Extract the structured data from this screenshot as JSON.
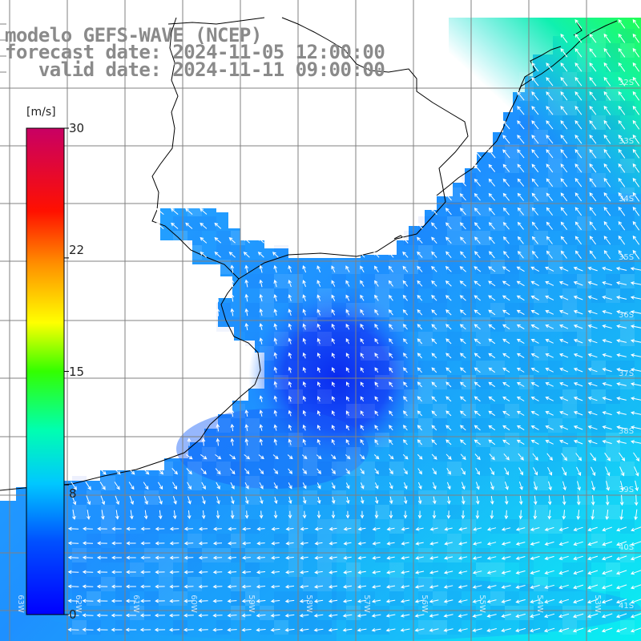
{
  "title": {
    "line1": "modelo GEFS-WAVE (NCEP)",
    "line2": "forecast date: 2024-11-05 12:00:00",
    "line3": "   valid date: 2024-11-11 09:00:00"
  },
  "colorbar": {
    "unit": "[m/s]",
    "ticks": [
      "30",
      "22",
      "15",
      "8",
      "0"
    ],
    "tick_values": [
      30,
      22,
      15,
      8,
      0
    ],
    "min": 0,
    "max": 30,
    "stops": [
      "#0000ff",
      "#00c8ff",
      "#00ffcc",
      "#33ff00",
      "#ffff00",
      "#ff8000",
      "#ff0000",
      "#c80064"
    ]
  },
  "grid": {
    "lat_labels": [
      "32S",
      "33S",
      "34S",
      "35S",
      "36S",
      "37S",
      "38S",
      "39S",
      "40S",
      "41S"
    ],
    "lon_labels": [
      "63W",
      "62W",
      "61W",
      "60W",
      "59W",
      "58W",
      "57W",
      "56W",
      "55W",
      "54W",
      "53W",
      "52W",
      "51W"
    ]
  },
  "legend_placement": "left",
  "field": "wind speed and direction over ocean"
}
